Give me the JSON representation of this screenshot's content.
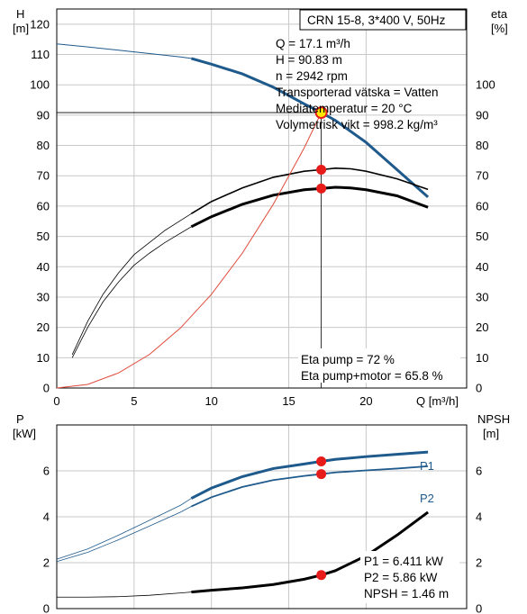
{
  "title": "CRN 15-8, 3*400 V, 50Hz",
  "colors": {
    "head": "#1f5a8c",
    "p1": "#1f5a8c",
    "p2": "#1f5a8c",
    "eta": "#000000",
    "npsh": "#000000",
    "system": "#e04a3a",
    "point": "#e81b1b",
    "grid": "#c8c8c8"
  },
  "duty_info": {
    "lines": [
      "Q = 17.1 m³/h",
      "H = 90.83 m",
      "n = 2942 rpm",
      "Transporterad vätska = Vatten",
      "Mediatemperatur = 20 °C",
      "Volymetrisk vikt = 998.2 kg/m³"
    ]
  },
  "eta_info": {
    "lines": [
      "Eta pump = 72 %",
      "Eta pump+motor = 65.8 %"
    ]
  },
  "power_info": {
    "lines": [
      "P1 = 6.411 kW",
      "P2 = 5.86 kW",
      "NPSH = 1.46 m"
    ]
  },
  "chart_data": [
    {
      "type": "line",
      "axes": {
        "x_label": "Q [m³/h]",
        "x_ticks": [
          "0",
          "5",
          "10",
          "15",
          "20"
        ],
        "xlim": [
          0,
          26.5
        ],
        "y_left_label": [
          "H",
          "[m]"
        ],
        "y_left_ticks": [
          "0",
          "10",
          "20",
          "30",
          "40",
          "50",
          "60",
          "70",
          "80",
          "90",
          "100",
          "110",
          "120"
        ],
        "y_left_lim": [
          0,
          125
        ],
        "y_right_label": [
          "eta",
          "[%]"
        ],
        "y_right_ticks": [
          "0",
          "10",
          "20",
          "30",
          "40",
          "50",
          "60",
          "70",
          "80",
          "90",
          "100"
        ],
        "y_right_lim": [
          0,
          125
        ],
        "grid": true
      },
      "series": [
        {
          "name": "H",
          "points": [
            [
              0,
              113.5
            ],
            [
              2,
              112.5
            ],
            [
              4,
              111.4
            ],
            [
              6,
              110.3
            ],
            [
              8,
              109.2
            ],
            [
              8.7,
              108.7
            ],
            [
              10,
              106.8
            ],
            [
              12,
              103.6
            ],
            [
              14,
              99.2
            ],
            [
              16,
              93.7
            ],
            [
              17.1,
              90.83
            ],
            [
              18,
              88.3
            ],
            [
              20,
              81.0
            ],
            [
              22,
              72.0
            ],
            [
              24,
              63.0
            ]
          ]
        },
        {
          "name": "Eta pump",
          "points": [
            [
              1,
              11
            ],
            [
              2,
              22
            ],
            [
              3,
              31
            ],
            [
              4,
              38
            ],
            [
              5,
              44
            ],
            [
              6,
              48
            ],
            [
              7,
              52
            ],
            [
              8.7,
              57.5
            ],
            [
              10,
              61.5
            ],
            [
              12,
              66
            ],
            [
              14,
              69.5
            ],
            [
              16,
              71.5
            ],
            [
              17.1,
              72
            ],
            [
              18,
              72.5
            ],
            [
              19,
              72.3
            ],
            [
              20,
              71.5
            ],
            [
              22,
              69
            ],
            [
              24,
              65.5
            ]
          ]
        },
        {
          "name": "Eta pump+motor",
          "points": [
            [
              1,
              10
            ],
            [
              2,
              20
            ],
            [
              3,
              28.5
            ],
            [
              4,
              35
            ],
            [
              5,
              40.5
            ],
            [
              6,
              44.5
            ],
            [
              7,
              48
            ],
            [
              8.7,
              53.2
            ],
            [
              10,
              56.5
            ],
            [
              12,
              60.6
            ],
            [
              14,
              63.6
            ],
            [
              16,
              65.4
            ],
            [
              17.1,
              65.8
            ],
            [
              18,
              66.2
            ],
            [
              19,
              66
            ],
            [
              20,
              65.4
            ],
            [
              22,
              63.4
            ],
            [
              24,
              59.6
            ]
          ]
        },
        {
          "name": "System",
          "points": [
            [
              0,
              0
            ],
            [
              2,
              1.2
            ],
            [
              4,
              5
            ],
            [
              6,
              11.1
            ],
            [
              8,
              19.8
            ],
            [
              10,
              30.9
            ],
            [
              12,
              44.5
            ],
            [
              14,
              60.6
            ],
            [
              16,
              79.2
            ],
            [
              17.1,
              90.83
            ]
          ]
        }
      ],
      "duty_point": {
        "q": 17.1,
        "h": 90.83,
        "eta_pump": 72,
        "eta_pump_motor": 65.8
      }
    },
    {
      "type": "line",
      "axes": {
        "x_label": "",
        "xlim": [
          0,
          26.5
        ],
        "y_left_label": [
          "P",
          "[kW]"
        ],
        "y_left_ticks": [
          "0",
          "2",
          "4",
          "6"
        ],
        "y_left_lim": [
          0,
          8
        ],
        "y_right_label": [
          "NPSH",
          "[m]"
        ],
        "y_right_ticks": [
          "0",
          "2",
          "4",
          "6"
        ],
        "y_right_lim": [
          0,
          8
        ],
        "grid": true
      },
      "series": [
        {
          "name": "P1",
          "points": [
            [
              0,
              2.15
            ],
            [
              2,
              2.6
            ],
            [
              4,
              3.2
            ],
            [
              6,
              3.85
            ],
            [
              8,
              4.5
            ],
            [
              8.7,
              4.8
            ],
            [
              10,
              5.25
            ],
            [
              12,
              5.75
            ],
            [
              14,
              6.1
            ],
            [
              16,
              6.3
            ],
            [
              17.1,
              6.411
            ],
            [
              18,
              6.5
            ],
            [
              20,
              6.62
            ],
            [
              22,
              6.72
            ],
            [
              24,
              6.82
            ]
          ]
        },
        {
          "name": "P2",
          "points": [
            [
              0,
              2.05
            ],
            [
              2,
              2.45
            ],
            [
              4,
              3.0
            ],
            [
              6,
              3.6
            ],
            [
              8,
              4.2
            ],
            [
              8.7,
              4.45
            ],
            [
              10,
              4.85
            ],
            [
              12,
              5.3
            ],
            [
              14,
              5.6
            ],
            [
              16,
              5.78
            ],
            [
              17.1,
              5.86
            ],
            [
              18,
              5.93
            ],
            [
              20,
              6.02
            ],
            [
              22,
              6.1
            ],
            [
              24,
              6.2
            ]
          ]
        },
        {
          "name": "NPSH",
          "points": [
            [
              0,
              0.5
            ],
            [
              2,
              0.5
            ],
            [
              4,
              0.52
            ],
            [
              6,
              0.58
            ],
            [
              8,
              0.68
            ],
            [
              8.7,
              0.72
            ],
            [
              10,
              0.8
            ],
            [
              12,
              0.9
            ],
            [
              14,
              1.05
            ],
            [
              16,
              1.28
            ],
            [
              17.1,
              1.46
            ],
            [
              18,
              1.65
            ],
            [
              20,
              2.3
            ],
            [
              22,
              3.2
            ],
            [
              24,
              4.2
            ]
          ]
        }
      ],
      "duty_point": {
        "q": 17.1,
        "p1": 6.411,
        "p2": 5.86,
        "npsh": 1.46
      }
    }
  ]
}
